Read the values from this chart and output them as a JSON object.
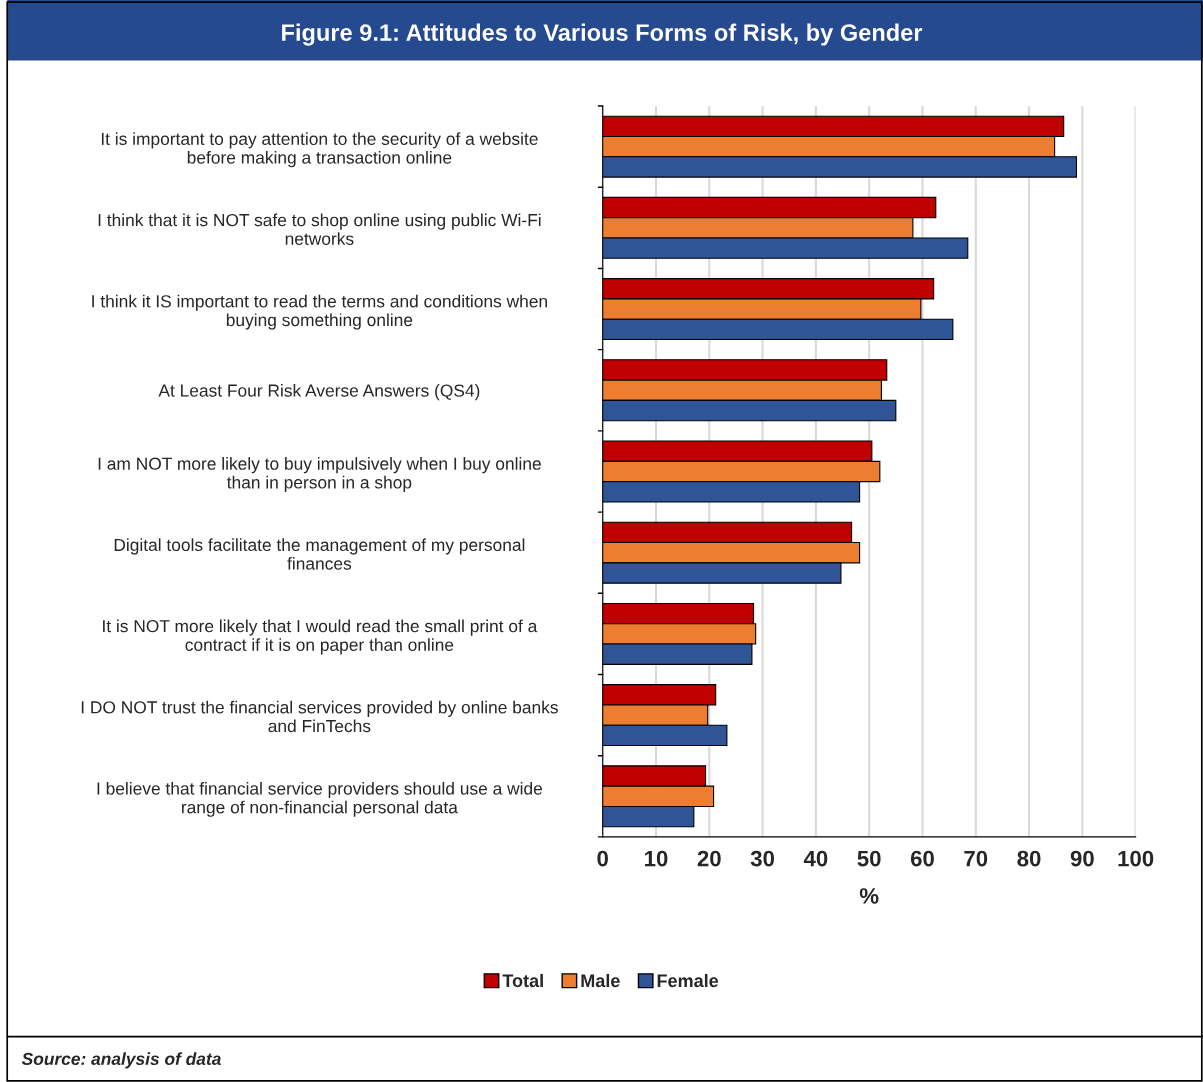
{
  "chart_data": {
    "type": "bar",
    "orientation": "horizontal",
    "title": "Figure 9.1: Attitudes to Various Forms of Risk, by Gender",
    "categories": [
      "It is important to pay attention to the security of a website\nbefore making a transaction online",
      "I think that it is NOT safe to shop online using public Wi-Fi\nnetworks",
      "I think it IS important to read the terms and conditions when\nbuying something online",
      "At Least Four Risk Averse Answers (QS4)",
      "I am NOT more likely to buy impulsively when I buy online\nthan in person in a shop",
      "Digital tools facilitate the management of my personal\nfinances",
      "It is NOT more likely that I would read the small print of a\ncontract if it is on paper than online",
      "I DO NOT trust the financial services provided by online banks\nand FinTechs",
      "I believe that financial service providers should use a wide\nrange of non-financial personal data"
    ],
    "series": [
      {
        "name": "Total",
        "color": "#c00000",
        "values": [
          86.5,
          62.5,
          62.1,
          53.3,
          50.5,
          46.7,
          28.3,
          21.2,
          19.3
        ]
      },
      {
        "name": "Male",
        "color": "#ed7d31",
        "values": [
          84.8,
          58.2,
          59.7,
          52.3,
          52.0,
          48.2,
          28.7,
          19.7,
          20.8
        ]
      },
      {
        "name": "Female",
        "color": "#2f5597",
        "values": [
          88.9,
          68.5,
          65.7,
          55.0,
          48.2,
          44.7,
          28.0,
          23.3,
          17.1
        ]
      }
    ],
    "xlim": [
      0,
      100
    ],
    "xticks": [
      0,
      10,
      20,
      30,
      40,
      50,
      60,
      70,
      80,
      90,
      100
    ],
    "xlabel": "%",
    "grid": "x",
    "legend": "bottom",
    "annotations": [
      "Source: analysis of data"
    ]
  }
}
